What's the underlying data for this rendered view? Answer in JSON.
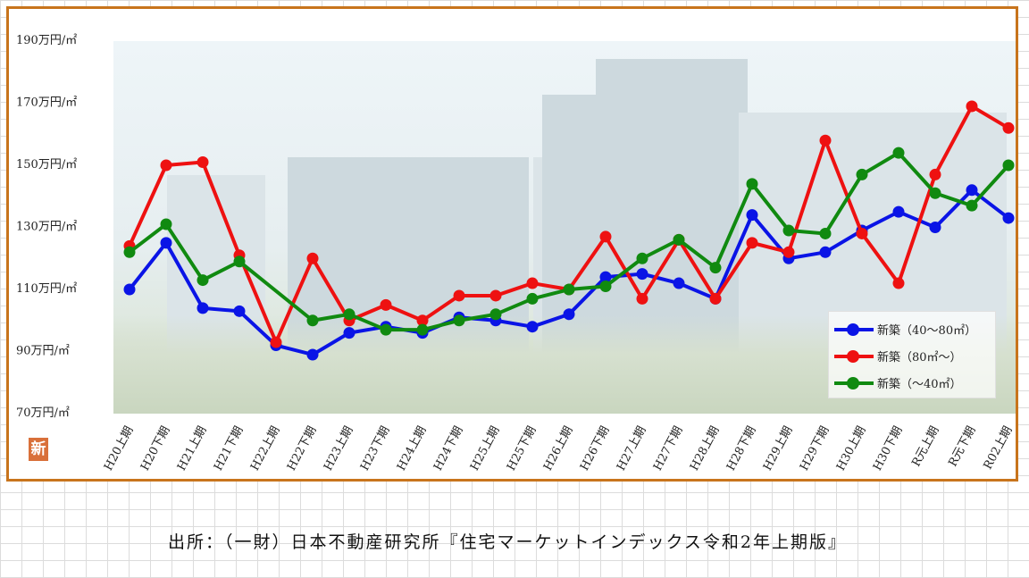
{
  "chart_data": {
    "type": "line",
    "categories": [
      "H20上期",
      "H20下期",
      "H21上期",
      "H21下期",
      "H22上期",
      "H22下期",
      "H23上期",
      "H23下期",
      "H24上期",
      "H24下期",
      "H25上期",
      "H25下期",
      "H26上期",
      "H26下期",
      "H27上期",
      "H27下期",
      "H28上期",
      "H28下期",
      "H29上期",
      "H29下期",
      "H30上期",
      "H30下期",
      "R元上期",
      "R元下期",
      "R02上期"
    ],
    "ylim": [
      70,
      190
    ],
    "yticks": [
      70,
      90,
      110,
      130,
      150,
      170,
      190
    ],
    "ytick_labels": [
      "70万円/㎡",
      "90万円/㎡",
      "110万円/㎡",
      "130万円/㎡",
      "150万円/㎡",
      "170万円/㎡",
      "190万円/㎡"
    ],
    "series": [
      {
        "name": "新築（40～80㎡）",
        "color": "#0a14e6",
        "values": [
          110,
          125,
          104,
          103,
          92,
          89,
          96,
          98,
          96,
          101,
          100,
          98,
          102,
          114,
          115,
          112,
          107,
          134,
          120,
          122,
          129,
          135,
          130,
          142,
          133
        ]
      },
      {
        "name": "新築（80㎡～）",
        "color": "#ee1111",
        "values": [
          124,
          150,
          151,
          121,
          93,
          120,
          100,
          105,
          100,
          108,
          108,
          112,
          110,
          127,
          107,
          126,
          107,
          125,
          122,
          158,
          128,
          112,
          147,
          169,
          162
        ]
      },
      {
        "name": "新築（～40㎡）",
        "color": "#108a10",
        "values": [
          122,
          131,
          113,
          119,
          null,
          100,
          102,
          97,
          97,
          100,
          102,
          107,
          110,
          111,
          120,
          126,
          117,
          144,
          129,
          128,
          147,
          154,
          141,
          137,
          150
        ]
      }
    ],
    "legend_position": "bottom-right",
    "grid": false
  },
  "badge": "新",
  "source": "出所：（一財）日本不動産研究所『住宅マーケットインデックス令和2年上期版』"
}
